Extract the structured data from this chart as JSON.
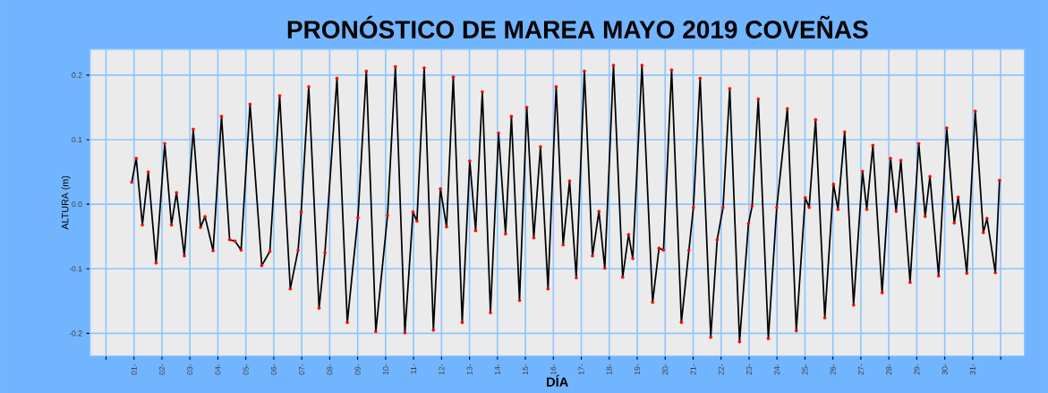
{
  "chart_data": {
    "type": "line",
    "title": "PRONÓSTICO DE MAREA MAYO 2019 COVEÑAS",
    "xlabel": "DÍA",
    "ylabel": "ALTURA (m)",
    "x": [
      0.92,
      1.08,
      1.3,
      1.51,
      1.79,
      2.1,
      2.34,
      2.52,
      2.8,
      3.12,
      3.38,
      3.54,
      3.83,
      4.13,
      4.42,
      4.61,
      4.83,
      5.15,
      5.57,
      5.86,
      6.21,
      6.59,
      6.87,
      6.98,
      7.25,
      7.62,
      7.83,
      8.26,
      8.63,
      9.01,
      9.31,
      9.65,
      10.07,
      10.35,
      10.69,
      10.98,
      11.12,
      11.38,
      11.71,
      11.96,
      12.18,
      12.42,
      12.74,
      13.01,
      13.22,
      13.46,
      13.75,
      14.04,
      14.29,
      14.5,
      14.79,
      15.05,
      15.3,
      15.54,
      15.81,
      16.1,
      16.35,
      16.58,
      16.82,
      17.11,
      17.4,
      17.63,
      17.84,
      18.15,
      18.48,
      18.69,
      18.84,
      19.17,
      19.55,
      19.78,
      19.94,
      20.23,
      20.58,
      20.85,
      21.01,
      21.25,
      21.63,
      21.86,
      22.07,
      22.31,
      22.66,
      22.98,
      23.11,
      23.33,
      23.69,
      23.99,
      24.37,
      24.69,
      25.01,
      25.15,
      25.38,
      25.71,
      26.02,
      26.18,
      26.42,
      26.74,
      27.06,
      27.21,
      27.43,
      27.76,
      28.06,
      28.26,
      28.43,
      28.76,
      29.07,
      29.3,
      29.47,
      29.78,
      30.07,
      30.34,
      30.48,
      30.79,
      31.09,
      31.38,
      31.51,
      31.81,
      31.96
    ],
    "series": [
      {
        "color": "#ff0000",
        "values": [
          0.034,
          0.071,
          -0.032,
          0.05,
          -0.091,
          0.094,
          -0.032,
          0.018,
          -0.08,
          0.116,
          -0.036,
          -0.019,
          -0.072,
          0.136,
          -0.055,
          -0.057,
          -0.071,
          0.155,
          -0.095,
          -0.073,
          0.168,
          -0.131,
          -0.071,
          -0.012,
          0.182,
          -0.161,
          -0.075,
          0.195,
          -0.183,
          -0.021,
          0.206,
          -0.197,
          -0.017,
          0.213,
          -0.199,
          -0.012,
          -0.026,
          0.211,
          -0.195,
          0.024,
          -0.035,
          0.197,
          -0.183,
          0.067,
          -0.041,
          0.174,
          -0.168,
          0.11,
          -0.046,
          0.136,
          -0.149,
          0.15,
          -0.052,
          0.089,
          -0.131,
          0.182,
          -0.063,
          0.036,
          -0.114,
          0.206,
          -0.08,
          -0.011,
          -0.099,
          0.215,
          -0.113,
          -0.047,
          -0.084,
          0.215,
          -0.152,
          -0.068,
          -0.071,
          0.208,
          -0.183,
          -0.071,
          -0.005,
          0.195,
          -0.206,
          -0.055,
          -0.005,
          0.179,
          -0.213,
          -0.03,
          -0.003,
          0.163,
          -0.208,
          -0.005,
          0.148,
          -0.196,
          0.01,
          -0.005,
          0.131,
          -0.176,
          0.031,
          -0.008,
          0.112,
          -0.156,
          0.051,
          -0.008,
          0.091,
          -0.137,
          0.071,
          -0.011,
          0.068,
          -0.121,
          0.094,
          -0.019,
          0.043,
          -0.111,
          0.118,
          -0.029,
          0.011,
          -0.107,
          0.144,
          -0.044,
          -0.022,
          -0.106,
          0.037
        ]
      }
    ],
    "marker": "circle",
    "grid": true,
    "xlim": [
      -0.57,
      32.85
    ],
    "ylim": [
      -0.235,
      0.24
    ],
    "xticks": [
      {
        "value": 0,
        "label": null
      },
      {
        "value": 1,
        "label": "01-"
      },
      {
        "value": 2,
        "label": "02-"
      },
      {
        "value": 3,
        "label": "03-"
      },
      {
        "value": 4,
        "label": "04-"
      },
      {
        "value": 5,
        "label": "05-"
      },
      {
        "value": 6,
        "label": "06-"
      },
      {
        "value": 7,
        "label": "07-"
      },
      {
        "value": 8,
        "label": "08-"
      },
      {
        "value": 9,
        "label": "09-"
      },
      {
        "value": 10,
        "label": "10-"
      },
      {
        "value": 11,
        "label": "11-"
      },
      {
        "value": 12,
        "label": "12-"
      },
      {
        "value": 13,
        "label": "13-"
      },
      {
        "value": 14,
        "label": "14-"
      },
      {
        "value": 15,
        "label": "15-"
      },
      {
        "value": 16,
        "label": "16-"
      },
      {
        "value": 17,
        "label": "17-"
      },
      {
        "value": 18,
        "label": "18-"
      },
      {
        "value": 19,
        "label": "19-"
      },
      {
        "value": 20,
        "label": "20-"
      },
      {
        "value": 21,
        "label": "21-"
      },
      {
        "value": 22,
        "label": "22-"
      },
      {
        "value": 23,
        "label": "23-"
      },
      {
        "value": 24,
        "label": "24-"
      },
      {
        "value": 25,
        "label": "25-"
      },
      {
        "value": 26,
        "label": "26-"
      },
      {
        "value": 27,
        "label": "27-"
      },
      {
        "value": 28,
        "label": "28-"
      },
      {
        "value": 29,
        "label": "29-"
      },
      {
        "value": 30,
        "label": "30-"
      },
      {
        "value": 31,
        "label": "31-"
      },
      {
        "value": 32,
        "label": null
      }
    ],
    "yticks": [
      -0.2,
      -0.1,
      {
        "value": 0,
        "label": "0.0"
      },
      0.1,
      0.2
    ]
  }
}
